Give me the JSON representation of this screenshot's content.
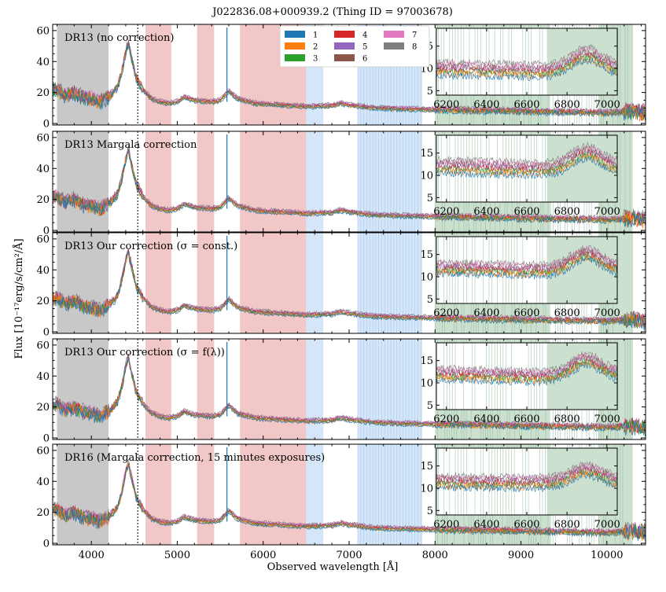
{
  "chart_data": {
    "type": "line",
    "title": "J022836.08+000939.2   (Thing ID = 97003678)",
    "xlabel": "Observed wavelength [Å]",
    "ylabel": "Flux [10⁻¹⁷erg/s/cm²/Å]",
    "xlim": [
      3550,
      10450
    ],
    "ylim": [
      -1,
      64
    ],
    "x_ticks": [
      4000,
      5000,
      6000,
      7000,
      8000,
      9000,
      10000
    ],
    "y_ticks": [
      0,
      20,
      40,
      60
    ],
    "legend": {
      "placement": "top-center",
      "entries": [
        {
          "name": "1",
          "color": "#1f77b4"
        },
        {
          "name": "2",
          "color": "#ff7f0e"
        },
        {
          "name": "3",
          "color": "#2ca02c"
        },
        {
          "name": "4",
          "color": "#d62728"
        },
        {
          "name": "5",
          "color": "#9467bd"
        },
        {
          "name": "6",
          "color": "#8c564b"
        },
        {
          "name": "7",
          "color": "#e377c2"
        },
        {
          "name": "8",
          "color": "#7f7f7f"
        }
      ]
    },
    "shaded_regions": {
      "gray": [
        [
          3600,
          4200
        ]
      ],
      "red": [
        [
          4630,
          4930
        ],
        [
          5230,
          5430
        ],
        [
          5730,
          6500
        ]
      ],
      "blue": [
        [
          6500,
          6700
        ],
        [
          7100,
          7850
        ]
      ],
      "green": [
        [
          8000,
          9340
        ],
        [
          9900,
          10300
        ]
      ]
    },
    "vertical_line": {
      "x": 4540,
      "style": "dotted"
    },
    "spike": {
      "x": 5578
    },
    "spectrum_profile": {
      "x": [
        3600,
        3700,
        3800,
        3900,
        4000,
        4100,
        4200,
        4300,
        4350,
        4400,
        4430,
        4470,
        4520,
        4600,
        4700,
        4800,
        4900,
        5000,
        5080,
        5200,
        5400,
        5500,
        5600,
        5700,
        5900,
        6200,
        6500,
        6800,
        6900,
        7000,
        7300,
        7600,
        8000,
        8500,
        9000,
        9500,
        10000,
        10300,
        10400
      ],
      "y": [
        22,
        18,
        20,
        17,
        16,
        14,
        17,
        23,
        32,
        46,
        52,
        42,
        30,
        22,
        16,
        14,
        13,
        14,
        17,
        15,
        14,
        15,
        21,
        16,
        13,
        12,
        11,
        11.5,
        13,
        12,
        10,
        9.5,
        9,
        8.5,
        8,
        7.5,
        7,
        8,
        7
      ]
    },
    "panels": [
      {
        "label": "DR13 (no correction)",
        "inset": {
          "xlim": [
            6150,
            7050
          ],
          "ylim": [
            4,
            19
          ],
          "x_ticks": [
            6200,
            6400,
            6600,
            6800,
            7000
          ],
          "y_ticks": [
            5,
            10,
            15
          ],
          "continuum": [
            10,
            9,
            13,
            10
          ],
          "spread": 3.5
        }
      },
      {
        "label": "DR13 Margala correction",
        "inset": {
          "xlim": [
            6150,
            7050
          ],
          "ylim": [
            4,
            19
          ],
          "x_ticks": [
            6200,
            6400,
            6600,
            6800,
            7000
          ],
          "y_ticks": [
            5,
            10,
            15
          ],
          "continuum": [
            12,
            11,
            15,
            12
          ],
          "spread": 3.5
        }
      },
      {
        "label": "DR13 Our correction (σ = const.)",
        "inset": {
          "xlim": [
            6150,
            7050
          ],
          "ylim": [
            4,
            19
          ],
          "x_ticks": [
            6200,
            6400,
            6600,
            6800,
            7000
          ],
          "y_ticks": [
            5,
            10,
            15
          ],
          "continuum": [
            12,
            11,
            15,
            12
          ],
          "spread": 3
        }
      },
      {
        "label": "DR13 Our correction (σ = f(λ))",
        "inset": {
          "xlim": [
            6150,
            7050
          ],
          "ylim": [
            4,
            19
          ],
          "x_ticks": [
            6200,
            6400,
            6600,
            6800,
            7000
          ],
          "y_ticks": [
            5,
            10,
            15
          ],
          "continuum": [
            12,
            11,
            15,
            12
          ],
          "spread": 3
        }
      },
      {
        "label": "DR16 (Margala correction, 15 minutes exposures)",
        "inset": {
          "xlim": [
            6150,
            7050
          ],
          "ylim": [
            4,
            19
          ],
          "x_ticks": [
            6200,
            6400,
            6600,
            6800,
            7000
          ],
          "y_ticks": [
            5,
            10,
            15
          ],
          "continuum": [
            11.5,
            11,
            14,
            11.5
          ],
          "spread": 3
        }
      }
    ]
  }
}
